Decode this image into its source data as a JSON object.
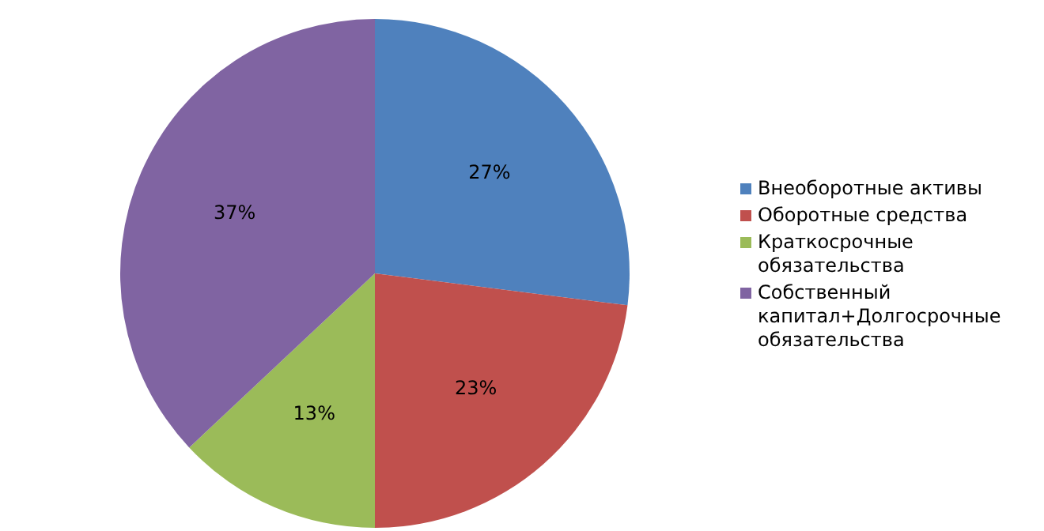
{
  "chart_data": {
    "type": "pie",
    "categories": [
      "Внеоборотные активы",
      "Оборотные средства",
      "Краткосрочные обязательства",
      "Собственный капитал+Долгосрочные обязательства"
    ],
    "values": [
      27,
      23,
      13,
      37
    ],
    "value_labels": [
      "27%",
      "23%",
      "13%",
      "37%"
    ],
    "colors": [
      "#4f81bd",
      "#c0504d",
      "#9bbb59",
      "#8064a2"
    ],
    "legend": "right"
  }
}
